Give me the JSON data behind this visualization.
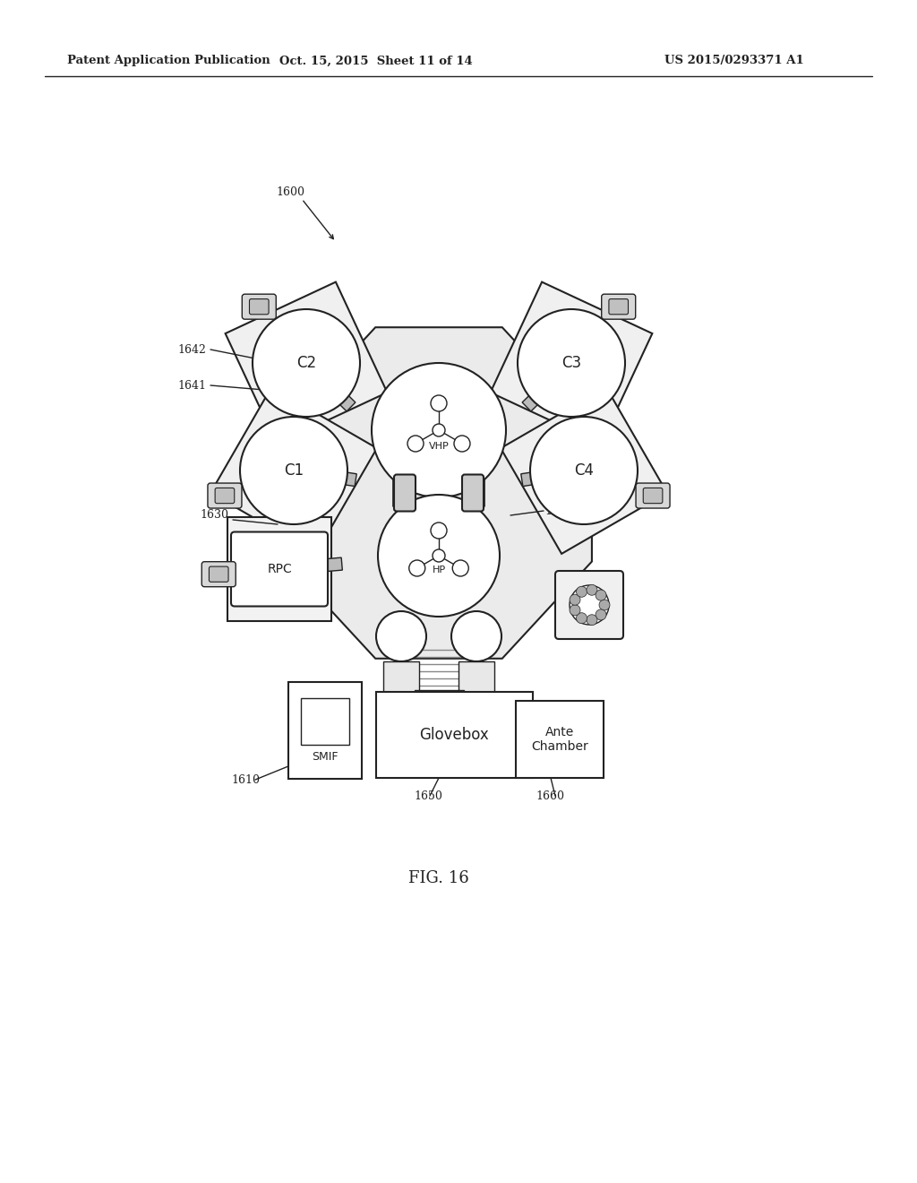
{
  "header_left": "Patent Application Publication",
  "header_mid": "Oct. 15, 2015  Sheet 11 of 14",
  "header_right": "US 2015/0293371 A1",
  "fig_label": "FIG. 16",
  "bg_color": "#ffffff",
  "line_color": "#222222"
}
